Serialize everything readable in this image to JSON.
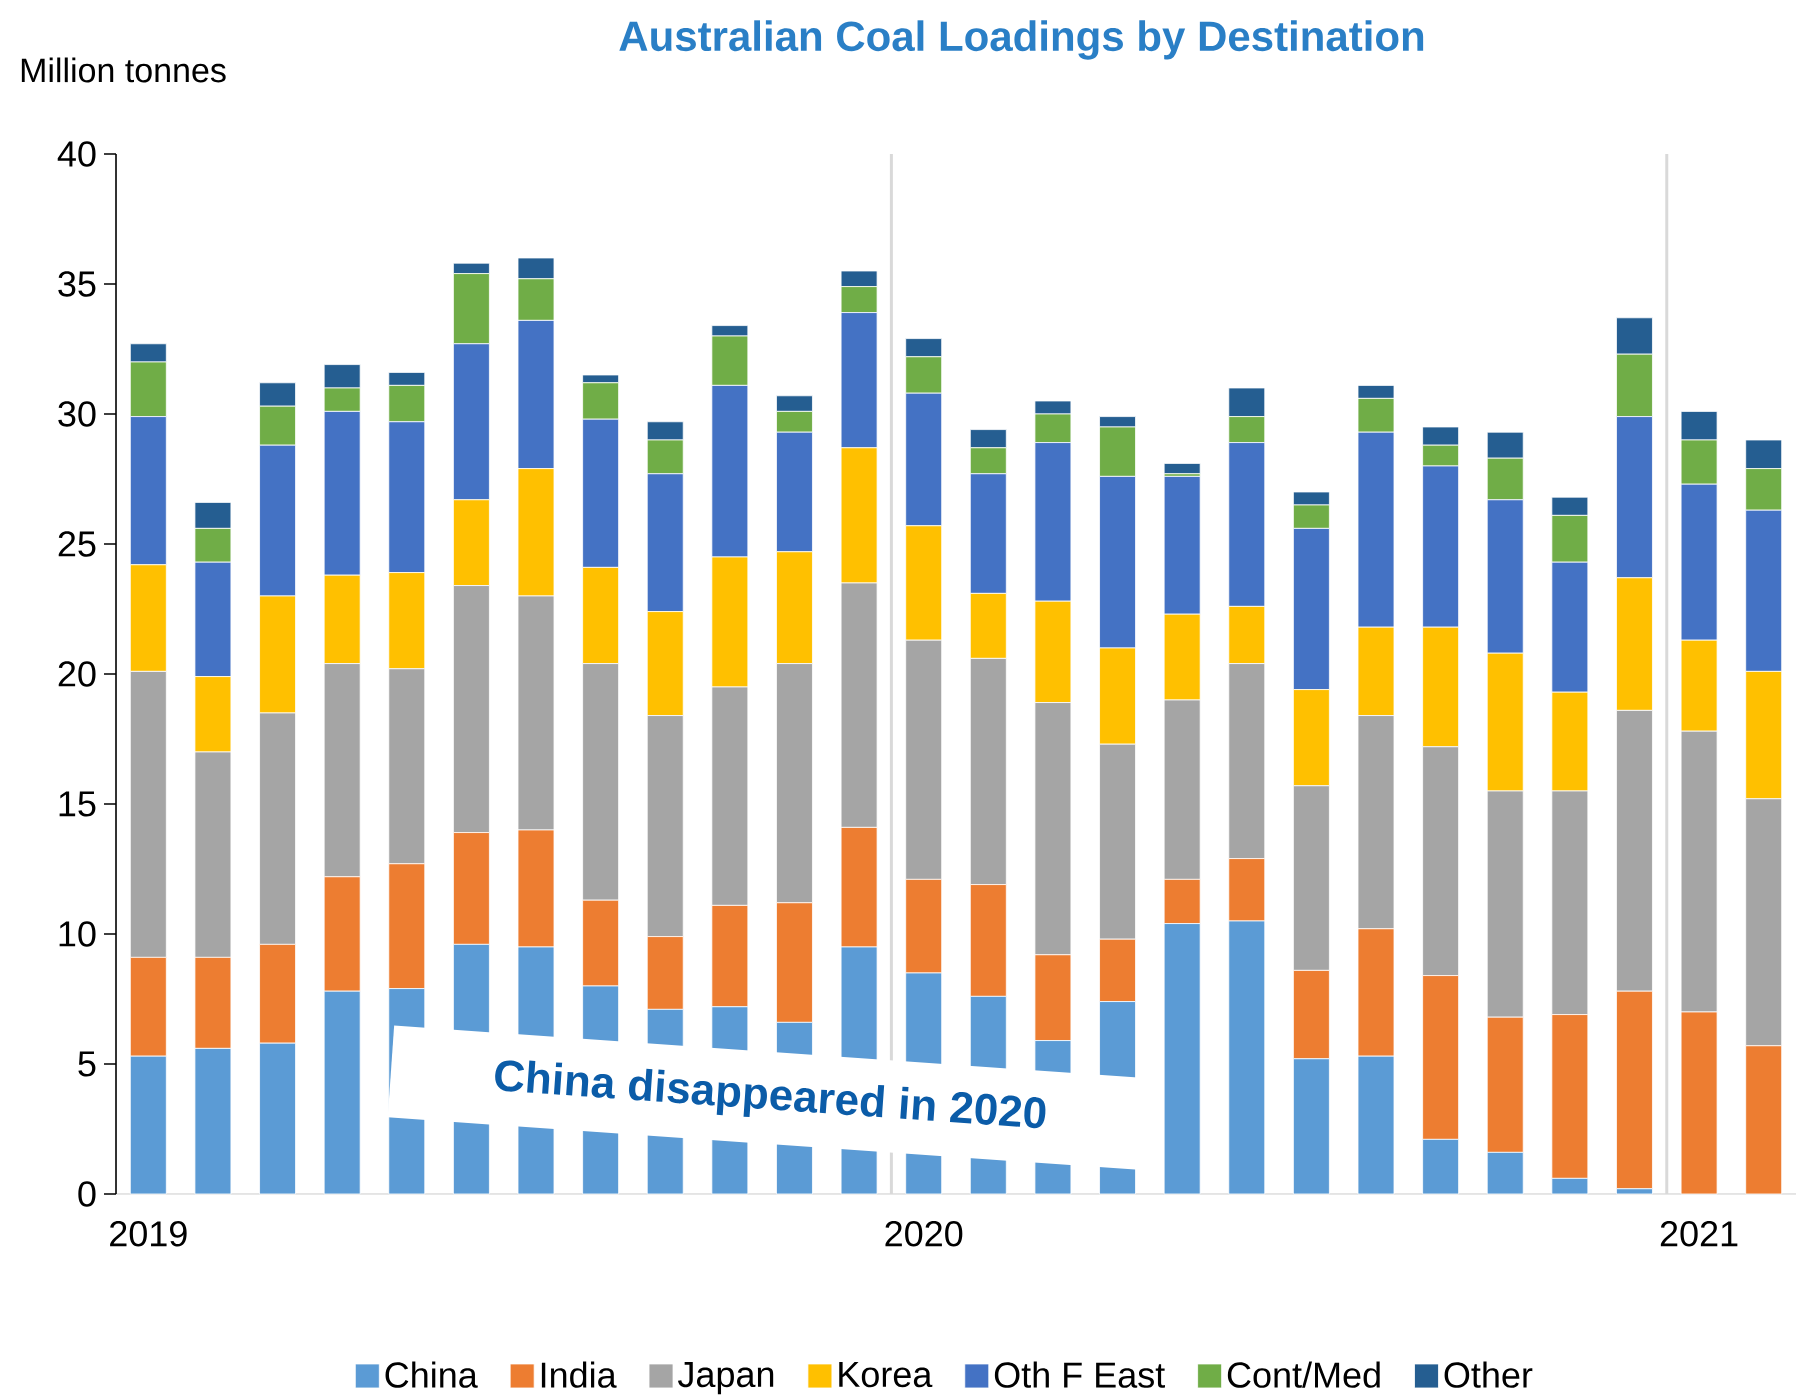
{
  "chart_data": {
    "type": "bar",
    "stacked": true,
    "title": "Australian Coal Loadings by Destination",
    "ylabel": "Million tonnes",
    "categories": [
      "2019",
      null,
      null,
      null,
      null,
      null,
      null,
      null,
      null,
      null,
      null,
      null,
      "2020",
      null,
      null,
      null,
      null,
      null,
      null,
      null,
      null,
      null,
      null,
      null,
      "2021",
      null
    ],
    "series": [
      {
        "name": "China",
        "color": "#5b9bd5",
        "values": [
          5.3,
          5.6,
          5.8,
          7.8,
          7.9,
          9.6,
          9.5,
          8.0,
          7.1,
          7.2,
          6.6,
          9.5,
          8.5,
          7.6,
          5.9,
          7.4,
          10.4,
          10.5,
          5.2,
          5.3,
          2.1,
          1.6,
          0.6,
          0.2,
          0,
          0
        ]
      },
      {
        "name": "India",
        "color": "#ed7d31",
        "values": [
          3.8,
          3.5,
          3.8,
          4.4,
          4.8,
          4.3,
          4.5,
          3.3,
          2.8,
          3.9,
          4.6,
          4.6,
          3.6,
          4.3,
          3.3,
          2.4,
          1.7,
          2.4,
          3.4,
          4.9,
          6.3,
          5.2,
          6.3,
          7.6,
          7.0,
          5.7
        ]
      },
      {
        "name": "Japan",
        "color": "#a5a5a5",
        "values": [
          11.0,
          7.9,
          8.9,
          8.2,
          7.5,
          9.5,
          9.0,
          9.1,
          8.5,
          8.4,
          9.2,
          9.4,
          9.2,
          8.7,
          9.7,
          7.5,
          6.9,
          7.5,
          7.1,
          8.2,
          8.8,
          8.7,
          8.6,
          10.8,
          10.8,
          9.5
        ]
      },
      {
        "name": "Korea",
        "color": "#ffc000",
        "values": [
          4.1,
          2.9,
          4.5,
          3.4,
          3.7,
          3.3,
          4.9,
          3.7,
          4.0,
          5.0,
          4.3,
          5.2,
          4.4,
          2.5,
          3.9,
          3.7,
          3.3,
          2.2,
          3.7,
          3.4,
          4.6,
          5.3,
          3.8,
          5.1,
          3.5,
          4.9
        ]
      },
      {
        "name": "Oth F East",
        "color": "#4472c4",
        "values": [
          5.7,
          4.4,
          5.8,
          6.3,
          5.8,
          6.0,
          5.7,
          5.7,
          5.3,
          6.6,
          4.6,
          5.2,
          5.1,
          4.6,
          6.1,
          6.6,
          5.3,
          6.3,
          6.2,
          7.5,
          6.2,
          5.9,
          5.0,
          6.2,
          6.0,
          6.2
        ]
      },
      {
        "name": "Cont/Med",
        "color": "#70ad47",
        "values": [
          2.1,
          1.3,
          1.5,
          0.9,
          1.4,
          2.7,
          1.6,
          1.4,
          1.3,
          1.9,
          0.8,
          1.0,
          1.4,
          1.0,
          1.1,
          1.9,
          0.1,
          1.0,
          0.9,
          1.3,
          0.8,
          1.6,
          1.8,
          2.4,
          1.7,
          1.6
        ]
      },
      {
        "name": "Other",
        "color": "#255e91",
        "values": [
          0.7,
          1.0,
          0.9,
          0.9,
          0.5,
          0.4,
          0.8,
          0.3,
          0.7,
          0.4,
          0.6,
          0.6,
          0.7,
          0.7,
          0.5,
          0.4,
          0.4,
          1.1,
          0.5,
          0.5,
          0.7,
          1.0,
          0.7,
          1.4,
          1.1,
          1.1
        ]
      }
    ],
    "ylim": [
      0,
      40
    ],
    "yticks": [
      0,
      5,
      10,
      15,
      20,
      25,
      30,
      35,
      40
    ],
    "annotations": [
      "China disappeared in 2020"
    ],
    "legend": "bottom"
  }
}
